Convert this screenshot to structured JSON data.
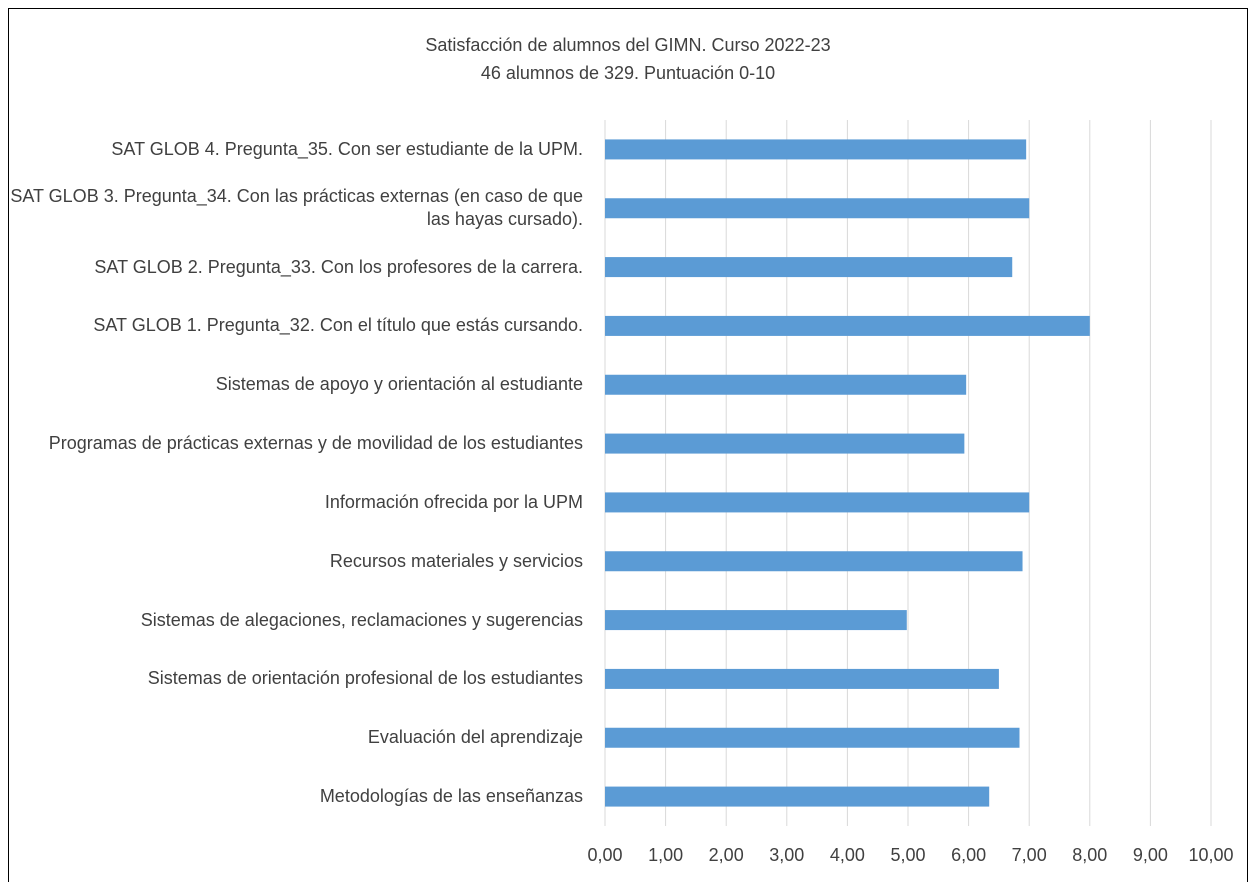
{
  "chart_data": {
    "type": "barh",
    "title": "Satisfacción de alumnos del GIMN. Curso 2022-23",
    "subtitle": "46 alumnos de 329. Puntuación 0-10",
    "categories": [
      "SAT GLOB 4. Pregunta_35. Con ser estudiante de la UPM.",
      "SAT GLOB 3. Pregunta_34. Con las prácticas externas (en caso de que las hayas cursado).",
      "SAT GLOB 2. Pregunta_33. Con los profesores de la carrera.",
      "SAT GLOB 1. Pregunta_32. Con el título que estás cursando.",
      "Sistemas de apoyo y orientación al estudiante",
      "Programas de prácticas externas y de movilidad de los estudiantes",
      "Información ofrecida por la UPM",
      "Recursos materiales y servicios",
      "Sistemas de alegaciones, reclamaciones y sugerencias",
      "Sistemas de orientación profesional de los estudiantes",
      "Evaluación del aprendizaje",
      "Metodologías de las enseñanzas"
    ],
    "values": [
      6.95,
      7.0,
      6.72,
      8.0,
      5.96,
      5.93,
      7.0,
      6.89,
      4.98,
      6.5,
      6.84,
      6.34
    ],
    "color": "#5b9bd5",
    "xlim": [
      0,
      10
    ],
    "xticks": [
      {
        "value": 0,
        "label": "0,00"
      },
      {
        "value": 1,
        "label": "1,00"
      },
      {
        "value": 2,
        "label": "2,00"
      },
      {
        "value": 3,
        "label": "3,00"
      },
      {
        "value": 4,
        "label": "4,00"
      },
      {
        "value": 5,
        "label": "5,00"
      },
      {
        "value": 6,
        "label": "6,00"
      },
      {
        "value": 7,
        "label": "7,00"
      },
      {
        "value": 8,
        "label": "8,00"
      },
      {
        "value": 9,
        "label": "9,00"
      },
      {
        "value": 10,
        "label": "10,00"
      }
    ],
    "grid": true
  }
}
